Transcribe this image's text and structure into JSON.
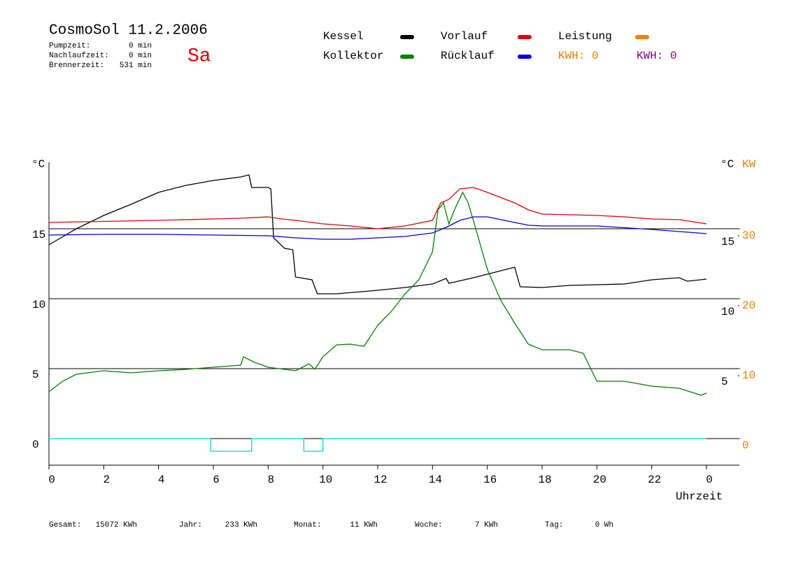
{
  "header": {
    "title": "CosmoSol 11.2.2006",
    "day": "Sa",
    "info": [
      {
        "label": "Pumpzeit:",
        "value": "0 min"
      },
      {
        "label": "Nachlaufzeit:",
        "value": "0 min"
      },
      {
        "label": "Brennerzeit:",
        "value": "531 min"
      }
    ],
    "kwh": [
      {
        "text": "KWH: 0",
        "color": "#e08000"
      },
      {
        "text": "KWH: 0",
        "color": "#800080"
      }
    ]
  },
  "chart_data": {
    "type": "line",
    "y_label": "°C",
    "y2_label": "°C",
    "y3_label": "KW",
    "x_label": "Uhrzeit",
    "xlim": [
      0,
      24
    ],
    "xticks": [
      0,
      2,
      4,
      6,
      8,
      10,
      12,
      14,
      16,
      18,
      20,
      22,
      {
        "value": 24,
        "label": "0"
      }
    ],
    "ylim": [
      -1.9,
      19.75
    ],
    "yticks": [
      0,
      5,
      10,
      15
    ],
    "y2lim": [
      -1.4,
      20.25
    ],
    "y2ticks": [
      5,
      10,
      15
    ],
    "y3lim": [
      -3.8,
      39.5
    ],
    "y3ticks": [
      0,
      10,
      20,
      30
    ],
    "series": [
      {
        "name": "Kessel",
        "color": "#000000",
        "x": [
          0,
          1,
          2,
          3,
          4,
          5,
          6,
          7,
          7.3,
          7.4,
          8,
          8.1,
          8.2,
          8.6,
          8.9,
          9,
          9.6,
          9.8,
          10.5,
          12,
          13,
          14,
          14.5,
          14.6,
          15.5,
          16,
          17,
          17.2,
          18,
          19,
          20,
          21,
          22,
          23,
          23.3,
          24
        ],
        "values": [
          13.85,
          15,
          15.95,
          16.75,
          17.6,
          18.1,
          18.45,
          18.7,
          18.85,
          17.95,
          17.95,
          17.85,
          14.35,
          13.6,
          13.5,
          11.55,
          11.35,
          10.35,
          10.35,
          10.6,
          10.8,
          11.05,
          11.45,
          11.1,
          11.5,
          11.75,
          12.25,
          10.85,
          10.8,
          10.95,
          11,
          11.05,
          11.35,
          11.5,
          11.25,
          11.4
        ]
      },
      {
        "name": "Kollektor",
        "color": "#008000",
        "x": [
          0,
          0.5,
          1,
          2,
          3,
          4,
          5,
          6,
          7,
          7.1,
          7.5,
          8,
          9,
          9.5,
          9.7,
          10,
          10.5,
          11,
          11.5,
          12,
          12.5,
          13,
          13.5,
          14,
          14.2,
          14.4,
          14.6,
          14.8,
          15.1,
          15.3,
          15.6,
          16,
          16.5,
          17,
          17.5,
          18,
          19,
          19.5,
          20,
          21,
          22,
          23,
          23.8,
          24
        ],
        "values": [
          3.35,
          4.1,
          4.6,
          4.85,
          4.7,
          4.85,
          4.95,
          5.1,
          5.25,
          5.85,
          5.45,
          5.1,
          4.85,
          5.35,
          4.95,
          5.85,
          6.7,
          6.75,
          6.6,
          8.1,
          9.1,
          10.35,
          11.35,
          13.35,
          16.35,
          16.85,
          15.35,
          16.35,
          17.6,
          16.85,
          14.85,
          12.1,
          9.85,
          8.25,
          6.75,
          6.35,
          6.35,
          6.1,
          4.1,
          4.1,
          3.75,
          3.6,
          3.1,
          3.25
        ]
      },
      {
        "name": "Vorlauf",
        "color": "#e00000",
        "x": [
          0,
          4,
          7,
          8,
          8.5,
          9,
          10,
          11,
          12,
          13,
          14,
          14.3,
          14.6,
          15,
          15.5,
          16,
          17,
          17.5,
          18,
          19,
          20,
          21,
          22,
          23,
          24
        ],
        "values": [
          15.45,
          15.6,
          15.75,
          15.85,
          15.7,
          15.6,
          15.35,
          15.2,
          15,
          15.2,
          15.6,
          16.85,
          17.1,
          17.85,
          17.95,
          17.6,
          16.85,
          16.35,
          16.05,
          16,
          15.95,
          15.85,
          15.7,
          15.65,
          15.35
        ]
      },
      {
        "name": "Rücklauf",
        "color": "#0000e0",
        "x": [
          0,
          2,
          4,
          6,
          8,
          9,
          10,
          11,
          12,
          13,
          14,
          14.5,
          15,
          15.5,
          16,
          17,
          17.5,
          18,
          20,
          22,
          24
        ],
        "values": [
          14.55,
          14.6,
          14.6,
          14.55,
          14.5,
          14.35,
          14.25,
          14.25,
          14.35,
          14.45,
          14.7,
          15.1,
          15.6,
          15.85,
          15.85,
          15.45,
          15.25,
          15.2,
          15.2,
          14.95,
          14.65
        ]
      },
      {
        "name": "Leistung",
        "color": "#f08000",
        "x": [],
        "values": []
      },
      {
        "color": "#00d8d8",
        "x": [
          0,
          5.9,
          5.9,
          7.4,
          7.4,
          9.3,
          9.3,
          10,
          10,
          21.9,
          21.9,
          24
        ],
        "values": [
          0,
          0,
          -0.9,
          -0.9,
          0,
          0,
          -0.9,
          -0.9,
          0,
          0,
          0,
          0
        ]
      }
    ]
  },
  "footer": [
    {
      "label": "Gesamt:",
      "value": "15072 KWh"
    },
    {
      "label": "Jahr:",
      "value": "233 KWh"
    },
    {
      "label": "Monat:",
      "value": "11 KWh"
    },
    {
      "label": "Woche:",
      "value": "7 KWh"
    },
    {
      "label": "Tag:",
      "value": "0 Wh"
    }
  ]
}
